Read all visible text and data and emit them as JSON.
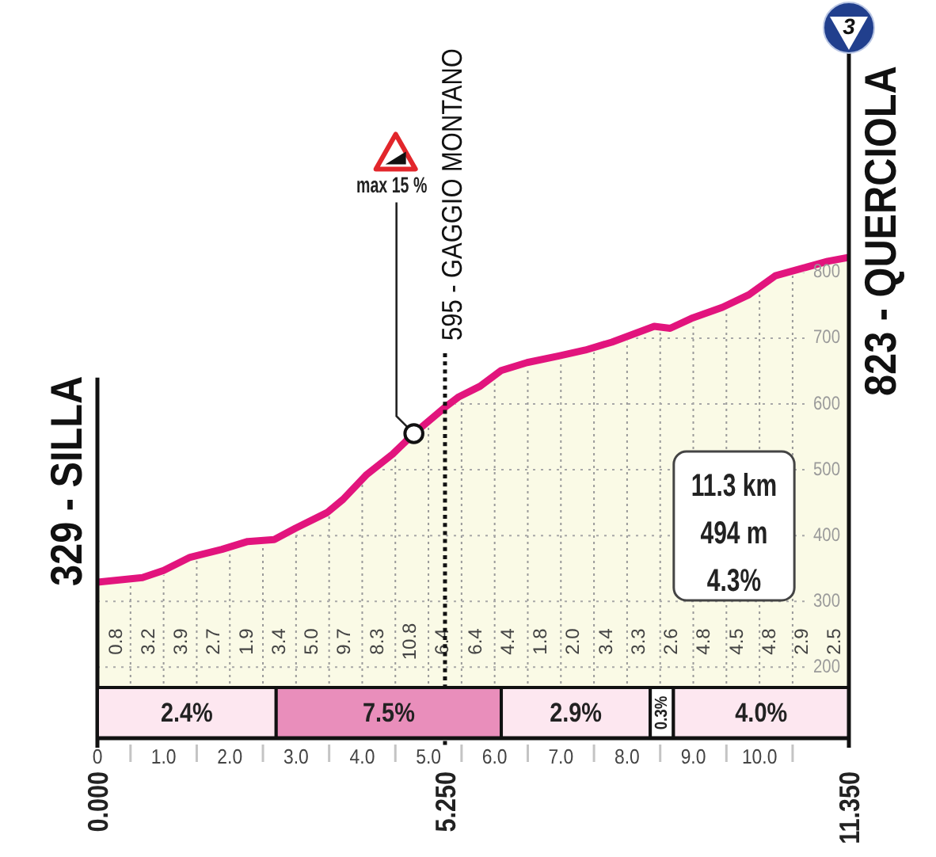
{
  "chart_data": [
    {
      "type": "area",
      "series": [
        {
          "color": "#e2147d",
          "x": [
            0,
            0.68,
            1.0,
            1.4,
            1.88,
            2.27,
            2.67,
            2.99,
            3.47,
            3.71,
            4.07,
            4.46,
            4.78,
            5.25,
            5.46,
            5.78,
            6.1,
            6.49,
            6.97,
            7.37,
            7.77,
            8.09,
            8.41,
            8.65,
            8.97,
            9.44,
            9.84,
            10.24,
            10.64,
            11.03,
            11.35
          ],
          "values": [
            329,
            336,
            347,
            367,
            379,
            391,
            394,
            411,
            435,
            455,
            493,
            524,
            555,
            595,
            611,
            627,
            651,
            663,
            673,
            682,
            694,
            706,
            718,
            715,
            730,
            747,
            766,
            795,
            806,
            817,
            823
          ]
        },
        {
          "type": "scatter",
          "color": "#ffffff",
          "marker": "circle",
          "x": [
            4.78
          ],
          "values": [
            555
          ]
        }
      ],
      "xlim": [
        0,
        11.35
      ],
      "ylim": [
        92,
        1190
      ],
      "xticks": [
        {
          "value": 0,
          "label": "0"
        },
        {
          "value": 0.5,
          "label": null
        },
        {
          "value": 1,
          "label": "1.0"
        },
        {
          "value": 1.5,
          "label": null
        },
        {
          "value": 2,
          "label": "2.0"
        },
        {
          "value": 2.5,
          "label": null
        },
        {
          "value": 3,
          "label": "3.0"
        },
        {
          "value": 3.5,
          "label": null
        },
        {
          "value": 4,
          "label": "4.0"
        },
        {
          "value": 4.5,
          "label": null
        },
        {
          "value": 5,
          "label": "5.0"
        },
        {
          "value": 5.5,
          "label": null
        },
        {
          "value": 6,
          "label": "6.0"
        },
        {
          "value": 6.5,
          "label": null
        },
        {
          "value": 7,
          "label": "7.0"
        },
        {
          "value": 7.5,
          "label": null
        },
        {
          "value": 8,
          "label": "8.0"
        },
        {
          "value": 8.5,
          "label": null
        },
        {
          "value": 9,
          "label": "9.0"
        },
        {
          "value": 9.5,
          "label": null
        },
        {
          "value": 10,
          "label": "10.0"
        },
        {
          "value": 10.5,
          "label": null
        }
      ],
      "yticks": [
        200,
        300,
        400,
        500,
        600,
        700,
        800
      ],
      "grid": true,
      "ref_lines": [
        {
          "axis": "x",
          "value": 0,
          "label": "329 - SILLA",
          "color": "#111111"
        },
        {
          "axis": "x",
          "value": 5.25,
          "label": "595 - GAGGIO MONTANO",
          "color": "#111111",
          "line_style": "dotted"
        }
      ],
      "bands": [
        {
          "axis": "x",
          "from": 0,
          "to": 2.7,
          "label": "2.4%",
          "color": "#fde7f0"
        },
        {
          "axis": "x",
          "from": 2.7,
          "to": 6.1,
          "label": "7.5%",
          "color": "#e98ebb"
        },
        {
          "axis": "x",
          "from": 6.1,
          "to": 8.35,
          "label": "2.9%",
          "color": "#fde7f0"
        },
        {
          "axis": "x",
          "from": 8.35,
          "to": 8.7,
          "label": "0.3%",
          "color": "#ffffff"
        },
        {
          "axis": "x",
          "from": 8.7,
          "to": 11.35,
          "label": "4.0%",
          "color": "#fde7f0"
        }
      ],
      "annotations": [
        "0.8",
        "3.2",
        "3.9",
        "2.7",
        "1.9",
        "3.4",
        "5.0",
        "9.7",
        "8.3",
        "10.8",
        "6.4",
        "6.4",
        "4.4",
        "1.8",
        "2.0",
        "3.4",
        "3.3",
        "2.6",
        "4.8",
        "4.5",
        "4.8",
        "2.9",
        "2.5",
        {
          "text": "max 15 %",
          "x": 4.78,
          "y": 555
        },
        {
          "text": "823 - QUERCIOLA",
          "x": 11.35,
          "y": 823
        },
        {
          "text": "0.000",
          "x": 0,
          "y": 92
        },
        {
          "text": "5.250",
          "x": 5.25,
          "y": 92
        },
        {
          "text": "11.350",
          "x": 11.35,
          "y": 92
        },
        {
          "text": "3",
          "x": 11.35,
          "y": 1172
        }
      ]
    },
    {
      "type": "other",
      "annotations": [
        "11.3 km",
        "494 m",
        "4.3%"
      ]
    }
  ]
}
